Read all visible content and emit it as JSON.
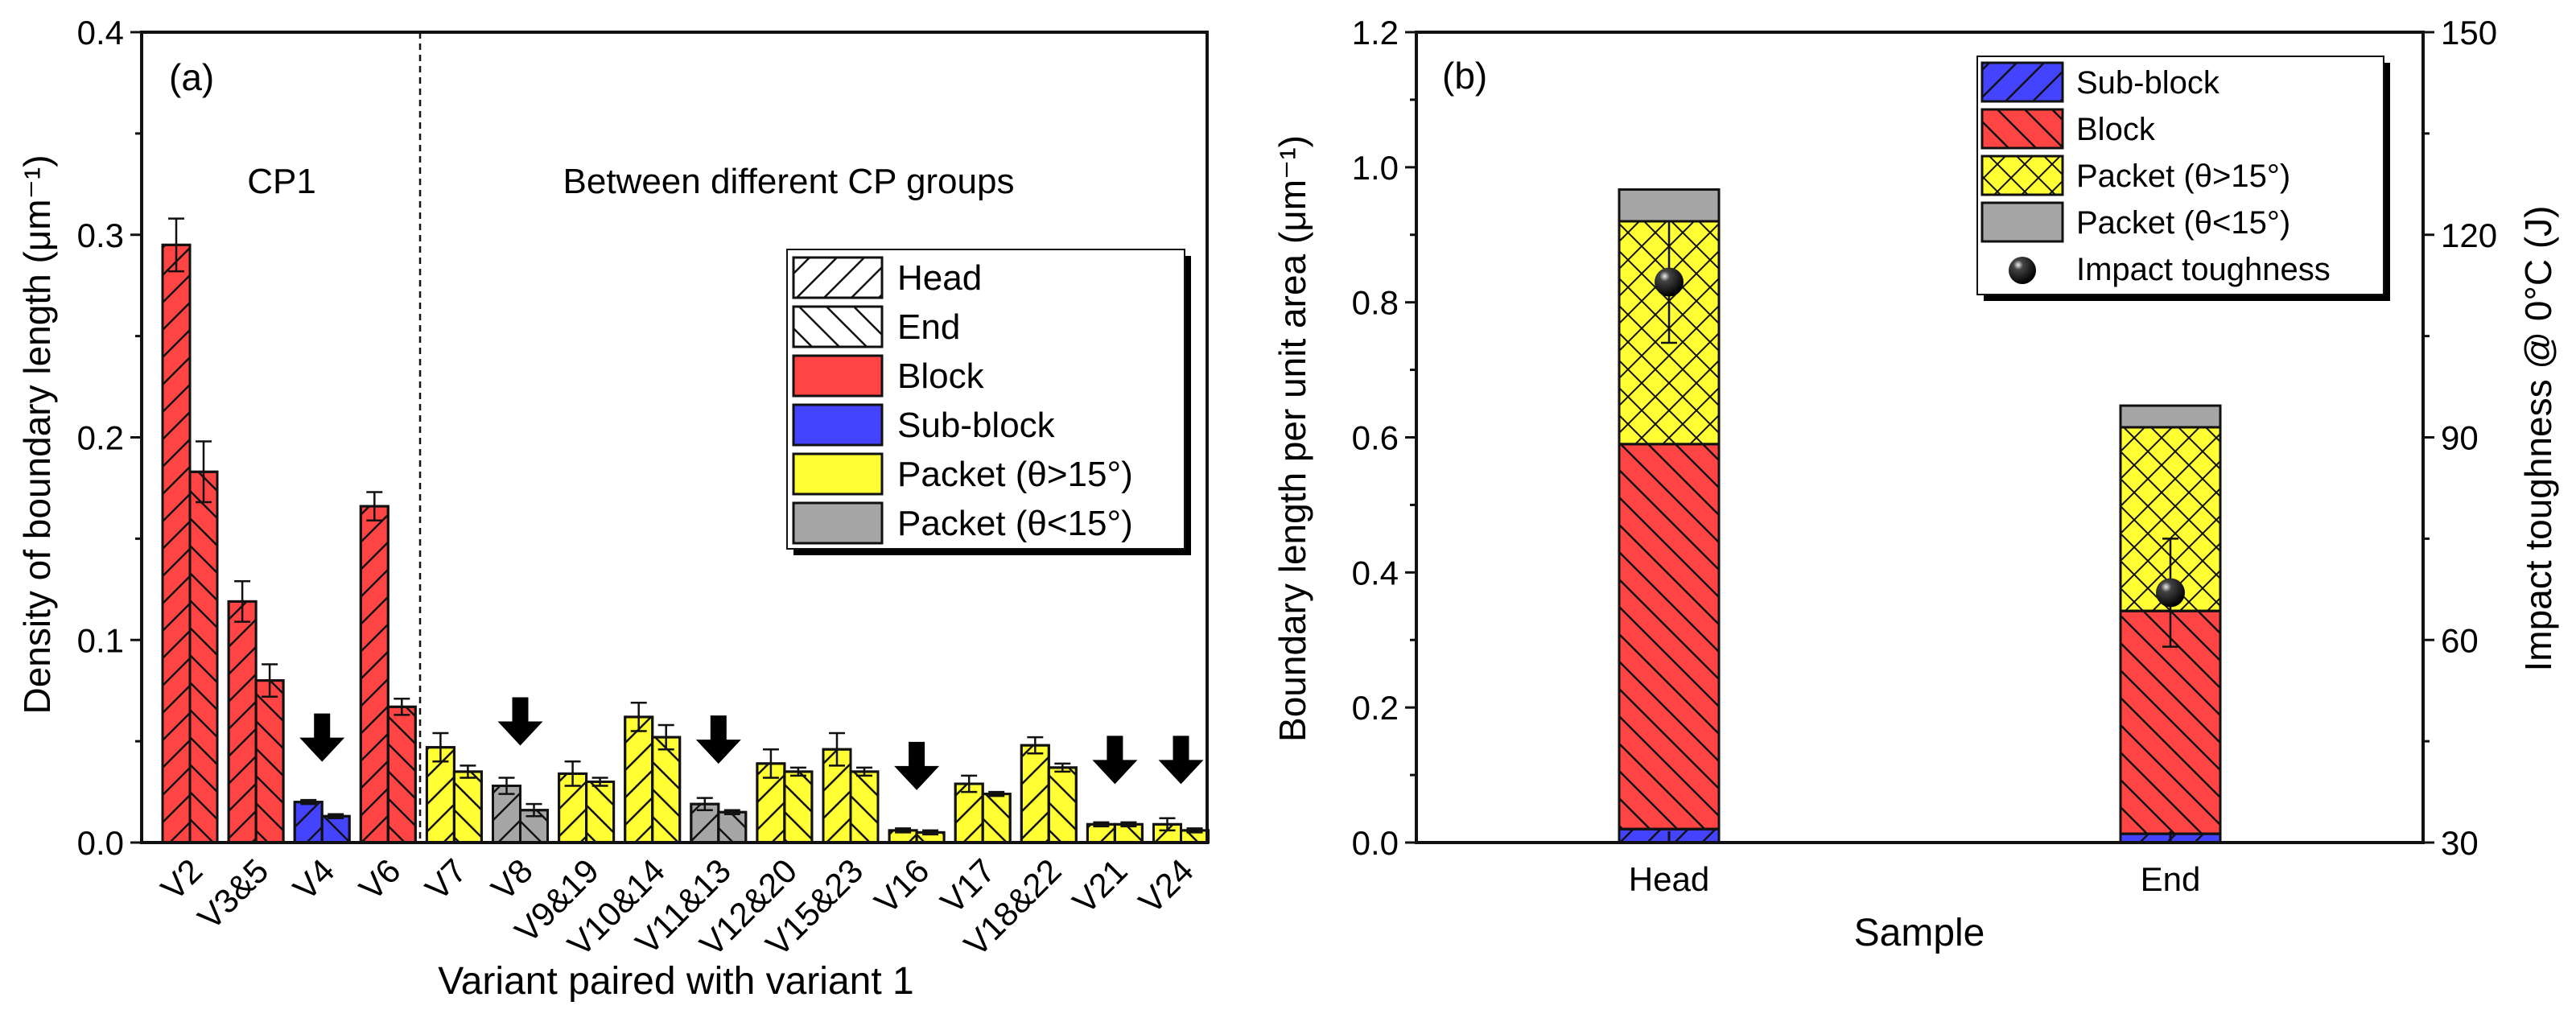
{
  "chart_data": [
    {
      "type": "bar",
      "panel_label": "(a)",
      "xlabel": "Variant paired with variant 1",
      "ylabel": "Density of boundary length (μm⁻¹)",
      "ylim": [
        0,
        0.4
      ],
      "yticks": [
        "0.0",
        "0.1",
        "0.2",
        "0.3",
        "0.4"
      ],
      "group_labels": [
        "CP1",
        "Between different CP groups"
      ],
      "legend": {
        "position": "top-right",
        "entries": [
          "Head",
          "End",
          "Block",
          "Sub-block",
          "Packet (θ>15°)",
          "Packet (θ<15°)"
        ]
      },
      "colors": {
        "Block": "#ff4444",
        "Sub-block": "#4444ff",
        "Packet (θ>15°)": "#ffff33",
        "Packet (θ<15°)": "#a6a6a6"
      },
      "categories": [
        "V2",
        "V3&5",
        "V4",
        "V6",
        "V7",
        "V8",
        "V9&19",
        "V10&14",
        "V11&13",
        "V12&20",
        "V15&23",
        "V16",
        "V17",
        "V18&22",
        "V21",
        "V24"
      ],
      "type_per_category": [
        "Block",
        "Block",
        "Sub-block",
        "Block",
        "Packet (θ>15°)",
        "Packet (θ<15°)",
        "Packet (θ>15°)",
        "Packet (θ>15°)",
        "Packet (θ<15°)",
        "Packet (θ>15°)",
        "Packet (θ>15°)",
        "Packet (θ>15°)",
        "Packet (θ>15°)",
        "Packet (θ>15°)",
        "Packet (θ>15°)",
        "Packet (θ>15°)"
      ],
      "arrow_marked": [
        "V4",
        "V8",
        "V11&13",
        "V16",
        "V21",
        "V24"
      ],
      "series": [
        {
          "name": "Head",
          "values": [
            0.295,
            0.119,
            0.02,
            0.166,
            0.047,
            0.028,
            0.034,
            0.062,
            0.019,
            0.039,
            0.046,
            0.006,
            0.029,
            0.048,
            0.009,
            0.009
          ],
          "errors": [
            0.013,
            0.01,
            0.001,
            0.007,
            0.007,
            0.004,
            0.006,
            0.007,
            0.003,
            0.007,
            0.008,
            0.001,
            0.004,
            0.004,
            0.001,
            0.003
          ]
        },
        {
          "name": "End",
          "values": [
            0.183,
            0.08,
            0.013,
            0.067,
            0.035,
            0.016,
            0.03,
            0.052,
            0.015,
            0.035,
            0.035,
            0.005,
            0.024,
            0.037,
            0.009,
            0.006
          ],
          "errors": [
            0.015,
            0.008,
            0.001,
            0.004,
            0.003,
            0.003,
            0.002,
            0.006,
            0.001,
            0.002,
            0.002,
            0.001,
            0.001,
            0.002,
            0.001,
            0.001
          ]
        }
      ]
    },
    {
      "type": "bar",
      "stacked": true,
      "panel_label": "(b)",
      "xlabel": "Sample",
      "ylabel": "Boundary length per unit area (μm⁻¹)",
      "ylabel_right": "Impact toughness @ 0°C (J)",
      "ylim": [
        0,
        1.2
      ],
      "yticks": [
        "0.0",
        "0.2",
        "0.4",
        "0.6",
        "0.8",
        "1.0",
        "1.2"
      ],
      "ylim_right": [
        30,
        150
      ],
      "yticks_right": [
        "30",
        "60",
        "90",
        "120",
        "150"
      ],
      "categories": [
        "Head",
        "End"
      ],
      "legend": {
        "position": "top-right",
        "entries": [
          "Sub-block",
          "Block",
          "Packet (θ>15°)",
          "Packet (θ<15°)",
          "Impact toughness"
        ]
      },
      "series": [
        {
          "name": "Sub-block",
          "color": "#4444ff",
          "values": [
            0.02,
            0.013
          ]
        },
        {
          "name": "Block",
          "color": "#ff4444",
          "values": [
            0.57,
            0.33
          ]
        },
        {
          "name": "Packet (θ>15°)",
          "color": "#ffff33",
          "values": [
            0.33,
            0.272
          ]
        },
        {
          "name": "Packet (θ<15°)",
          "color": "#a6a6a6",
          "values": [
            0.047,
            0.032
          ]
        }
      ],
      "toughness": {
        "name": "Impact toughness",
        "values": [
          113,
          67
        ],
        "errors": [
          9,
          8
        ]
      }
    }
  ]
}
